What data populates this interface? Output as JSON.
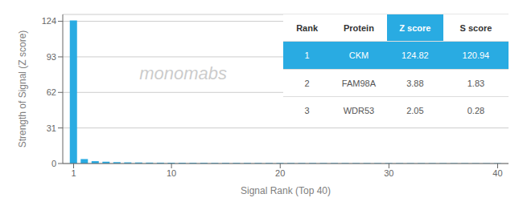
{
  "chart_data": {
    "type": "bar",
    "xlabel": "Signal Rank (Top 40)",
    "ylabel": "Strength of Signal (Z score)",
    "x": [
      1,
      2,
      3,
      4,
      5,
      6,
      7,
      8,
      9,
      10,
      11,
      12,
      13,
      14,
      15,
      16,
      17,
      18,
      19,
      20,
      21,
      22,
      23,
      24,
      25,
      26,
      27,
      28,
      29,
      30,
      31,
      32,
      33,
      34,
      35,
      36,
      37,
      38,
      39,
      40
    ],
    "values": [
      124.82,
      3.88,
      2.05,
      1.5,
      1.2,
      1.0,
      0.9,
      0.8,
      0.75,
      0.7,
      0.65,
      0.62,
      0.6,
      0.58,
      0.55,
      0.53,
      0.51,
      0.49,
      0.47,
      0.46,
      0.44,
      0.43,
      0.42,
      0.41,
      0.4,
      0.39,
      0.38,
      0.37,
      0.36,
      0.35,
      0.34,
      0.33,
      0.32,
      0.31,
      0.3,
      0.29,
      0.28,
      0.27,
      0.26,
      0.25
    ],
    "color": "#29abe2",
    "xlim": [
      0,
      41
    ],
    "ylim": [
      0,
      130
    ],
    "xticks": [
      1,
      10,
      20,
      30,
      40
    ],
    "yticks": [
      0,
      31,
      62,
      93,
      124
    ],
    "grid": true,
    "annotations": [
      "monomabs"
    ],
    "table": {
      "columns": [
        "Rank",
        "Protein",
        "Z score",
        "S score"
      ],
      "rows": [
        [
          "1",
          "CKM",
          "124.82",
          "120.94"
        ],
        [
          "2",
          "FAM98A",
          "3.88",
          "1.83"
        ],
        [
          "3",
          "WDR53",
          "2.05",
          "0.28"
        ]
      ]
    }
  }
}
